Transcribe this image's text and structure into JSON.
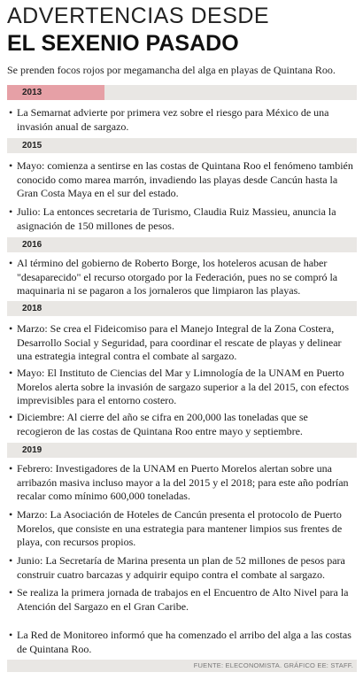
{
  "header": {
    "title_line1": "ADVERTENCIAS DESDE",
    "title_line2": "EL SEXENIO PASADO",
    "subtitle": "Se prenden focos rojos por megamancha del alga en playas de Quintana Roo."
  },
  "accent_color": "#e6a0a6",
  "bar_color": "#e9e7e4",
  "sections": [
    {
      "year": "2013",
      "items": [
        "La Semarnat advierte por primera vez sobre el riesgo para México de una invasión anual de sargazo."
      ]
    },
    {
      "year": "2015",
      "items": [
        "Mayo: comienza a sentirse en las costas de Quintana Roo el fenómeno también conocido como marea marrón, invadiendo las playas desde Cancún hasta la Gran Costa Maya en el sur del estado.",
        "Julio: La entonces secretaria de Turismo, Claudia Ruiz Massieu, anuncia la asignación de 150 millones de pesos."
      ]
    },
    {
      "year": "2016",
      "items": [
        " Al término del gobierno de Roberto Borge, los hoteleros acusan de haber \"desaparecido\" el recurso otorgado por la Federación, pues no se compró la maquinaria ni se pagaron a los jornaleros que limpiaron las playas."
      ]
    },
    {
      "year": "2018",
      "items": [
        "Marzo: Se crea el Fideicomiso para el Manejo Integral de la Zona Costera, Desarrollo Social y Seguridad, para coordinar el rescate de playas y delinear una estrategia integral contra el combate al sargazo.",
        "Mayo: El Instituto de Ciencias del Mar y Limnología de la UNAM en Puerto Morelos alerta sobre la invasión de sargazo superior a la del 2015, con efectos imprevisibles para el entorno costero.",
        "Diciembre: Al cierre del año se cifra en 200,000 las toneladas que se recogieron de las costas de Quintana Roo entre mayo y septiembre."
      ]
    },
    {
      "year": "2019",
      "items": [
        "Febrero: Investigadores de la UNAM en Puerto Morelos alertan sobre una arribazón masiva incluso mayor a la del 2015 y el 2018; para este año podrían recalar como mínimo 600,000 toneladas.",
        "Marzo: La Asociación de Hoteles de Cancún presenta el protocolo de Puerto Morelos, que consiste en una estrategia para mantener limpios sus frentes de playa, con recursos propios.",
        "Junio: La Secretaría de Marina presenta un plan de 52 millones de pesos para construir cuatro barcazas y adquirir equipo contra el combate al sargazo.",
        "Se realiza la primera jornada de trabajos en el Encuentro de Alto Nivel para la Atención del Sargazo en el Gran Caribe.",
        "La Red de Monitoreo informó que ha comenzado el arribo del alga a las costas de Quintana Roo."
      ]
    }
  ],
  "bullet_char": "•",
  "footer": {
    "source": "FUENTE: ELECONOMISTA. GRÁFICO EE: STAFF."
  }
}
